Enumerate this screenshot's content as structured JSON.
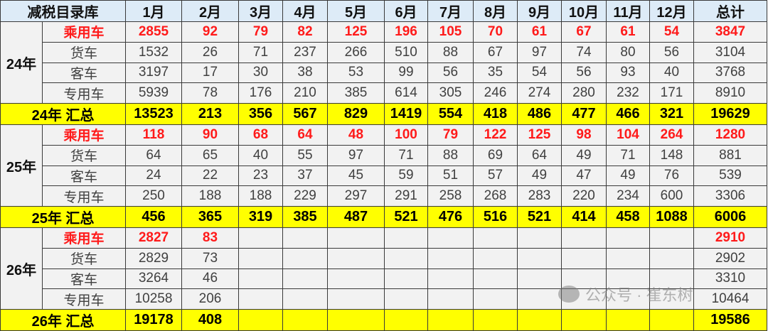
{
  "header": {
    "corner": "减税目录库",
    "months": [
      "1月",
      "2月",
      "3月",
      "4月",
      "5月",
      "6月",
      "7月",
      "8月",
      "9月",
      "10月",
      "11月",
      "12月"
    ],
    "total": "总计"
  },
  "groups": [
    {
      "year": "24年",
      "rows": [
        {
          "label": "乘用车",
          "highlight": true,
          "values": [
            "2855",
            "92",
            "79",
            "82",
            "125",
            "196",
            "105",
            "70",
            "61",
            "67",
            "61",
            "54"
          ],
          "total": "3847"
        },
        {
          "label": "货车",
          "values": [
            "1532",
            "26",
            "71",
            "237",
            "266",
            "510",
            "88",
            "67",
            "97",
            "74",
            "80",
            "56"
          ],
          "total": "3104"
        },
        {
          "label": "客车",
          "values": [
            "3197",
            "17",
            "30",
            "38",
            "53",
            "99",
            "56",
            "35",
            "54",
            "56",
            "93",
            "40"
          ],
          "total": "3768"
        },
        {
          "label": "专用车",
          "values": [
            "5939",
            "78",
            "176",
            "210",
            "385",
            "614",
            "305",
            "246",
            "274",
            "280",
            "232",
            "171"
          ],
          "total": "8910"
        }
      ],
      "summary": {
        "label": "24年 汇总",
        "values": [
          "13523",
          "213",
          "356",
          "567",
          "829",
          "1419",
          "554",
          "418",
          "486",
          "477",
          "466",
          "321"
        ],
        "total": "19629"
      }
    },
    {
      "year": "25年",
      "rows": [
        {
          "label": "乘用车",
          "highlight": true,
          "values": [
            "118",
            "90",
            "68",
            "64",
            "48",
            "100",
            "79",
            "122",
            "125",
            "98",
            "104",
            "264"
          ],
          "total": "1280"
        },
        {
          "label": "货车",
          "values": [
            "64",
            "65",
            "40",
            "55",
            "97",
            "71",
            "88",
            "69",
            "64",
            "49",
            "71",
            "148"
          ],
          "total": "881"
        },
        {
          "label": "客车",
          "values": [
            "24",
            "22",
            "23",
            "37",
            "45",
            "59",
            "51",
            "57",
            "49",
            "47",
            "49",
            "76"
          ],
          "total": "539"
        },
        {
          "label": "专用车",
          "values": [
            "250",
            "188",
            "188",
            "229",
            "297",
            "291",
            "258",
            "268",
            "283",
            "220",
            "234",
            "600"
          ],
          "total": "3306"
        }
      ],
      "summary": {
        "label": "25年 汇总",
        "values": [
          "456",
          "365",
          "319",
          "385",
          "487",
          "521",
          "476",
          "516",
          "521",
          "414",
          "458",
          "1088"
        ],
        "total": "6006"
      }
    },
    {
      "year": "26年",
      "rows": [
        {
          "label": "乘用车",
          "highlight": true,
          "values": [
            "2827",
            "83",
            "",
            "",
            "",
            "",
            "",
            "",
            "",
            "",
            "",
            ""
          ],
          "total": "2910"
        },
        {
          "label": "货车",
          "values": [
            "2829",
            "73",
            "",
            "",
            "",
            "",
            "",
            "",
            "",
            "",
            "",
            ""
          ],
          "total": "2902"
        },
        {
          "label": "客车",
          "values": [
            "3264",
            "46",
            "",
            "",
            "",
            "",
            "",
            "",
            "",
            "",
            "",
            ""
          ],
          "total": "3310"
        },
        {
          "label": "专用车",
          "values": [
            "10258",
            "206",
            "",
            "",
            "",
            "",
            "",
            "",
            "",
            "",
            "",
            ""
          ],
          "total": "10464"
        }
      ],
      "summary": {
        "label": "26年 汇总",
        "values": [
          "19178",
          "408",
          "",
          "",
          "",
          "",
          "",
          "",
          "",
          "",
          "",
          ""
        ],
        "total": "19586"
      }
    }
  ],
  "watermark": "公众号 · 崔东树",
  "colors": {
    "header_bg": "#ddebf7",
    "summary_bg": "#ffff00",
    "highlight_text": "#ff1a1a",
    "cell_bg": "#f2f2f2"
  }
}
